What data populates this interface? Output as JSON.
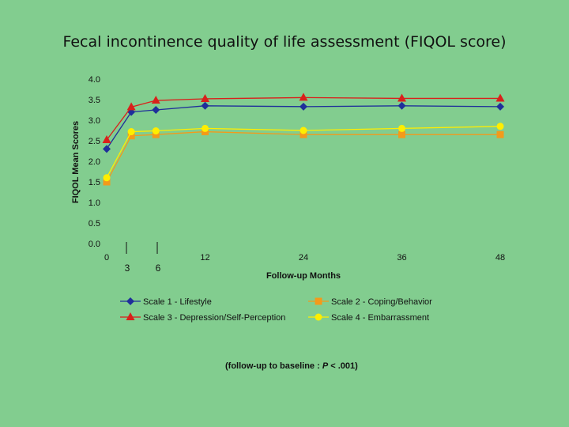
{
  "slide": {
    "title": "Fecal incontinence quality of life assessment (FIQOL score)",
    "footnote_prefix": "(follow-up to baseline  :  ",
    "footnote_p": "P",
    "footnote_suffix": " < .001)"
  },
  "chart_data": {
    "type": "line",
    "title": "",
    "xlabel": "Follow-up Months",
    "ylabel": "FIQOL Mean Scores",
    "ylim": [
      0,
      4
    ],
    "yticks": [
      "0.0",
      "0.5",
      "1.0",
      "1.5",
      "2.0",
      "2.5",
      "3.0",
      "3.5",
      "4.0"
    ],
    "x": [
      0,
      3,
      6,
      12,
      24,
      36,
      48
    ],
    "xtick_labels_top": [
      "0",
      "12",
      "24",
      "36",
      "48"
    ],
    "xtick_labels_low": [
      "3",
      "6"
    ],
    "grid": false,
    "legend_position": "bottom",
    "series": [
      {
        "name": "Scale 1 - Lifestyle",
        "color": "#1f2f9a",
        "marker": "diamond",
        "values": [
          2.3,
          3.2,
          3.25,
          3.35,
          3.33,
          3.35,
          3.33
        ]
      },
      {
        "name": "Scale 2 - Coping/Behavior",
        "color": "#f39a1b",
        "marker": "square",
        "values": [
          1.5,
          2.62,
          2.65,
          2.72,
          2.65,
          2.65,
          2.65
        ]
      },
      {
        "name": "Scale 3 - Depression/Self-Perception",
        "color": "#d9201b",
        "marker": "triangle",
        "values": [
          2.52,
          3.32,
          3.48,
          3.52,
          3.55,
          3.53,
          3.53
        ]
      },
      {
        "name": "Scale 4 - Embarrassment",
        "color": "#ffee00",
        "marker": "circle",
        "values": [
          1.6,
          2.72,
          2.74,
          2.8,
          2.75,
          2.8,
          2.85
        ]
      }
    ]
  }
}
